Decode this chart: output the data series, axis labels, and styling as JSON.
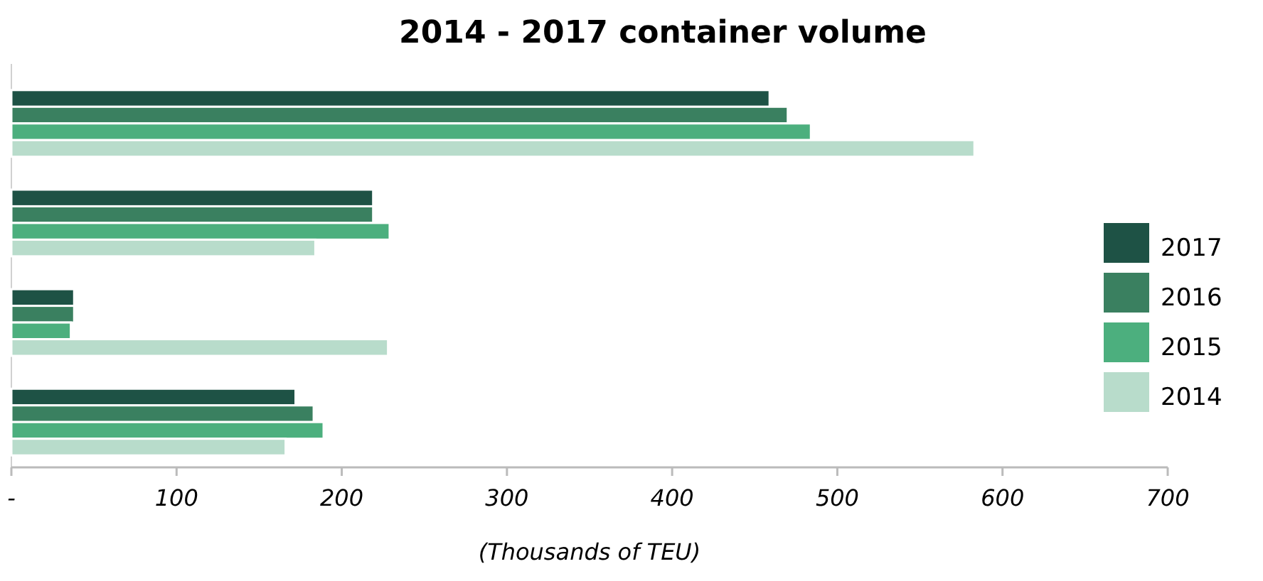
{
  "chart_data": {
    "type": "bar",
    "orientation": "horizontal",
    "title": "2014 - 2017 container volume",
    "xlabel": "(Thousands of TEU)",
    "categories": [
      null,
      null,
      null,
      null
    ],
    "series": [
      {
        "name": "2017",
        "color": "#1e5245",
        "values": [
          459,
          219,
          38,
          172
        ]
      },
      {
        "name": "2016",
        "color": "#3a8060",
        "values": [
          470,
          219,
          38,
          183
        ]
      },
      {
        "name": "2015",
        "color": "#4caf7e",
        "values": [
          484,
          229,
          36,
          189
        ]
      },
      {
        "name": "2014",
        "color": "#b8dccb",
        "values": [
          583,
          184,
          228,
          166
        ]
      }
    ],
    "xlim": [
      0,
      700
    ],
    "xticks": [
      {
        "value": 0,
        "label": "-"
      },
      100,
      200,
      300,
      400,
      500,
      600,
      700
    ],
    "tick_labels": "x",
    "legend": "right",
    "grid": false
  }
}
